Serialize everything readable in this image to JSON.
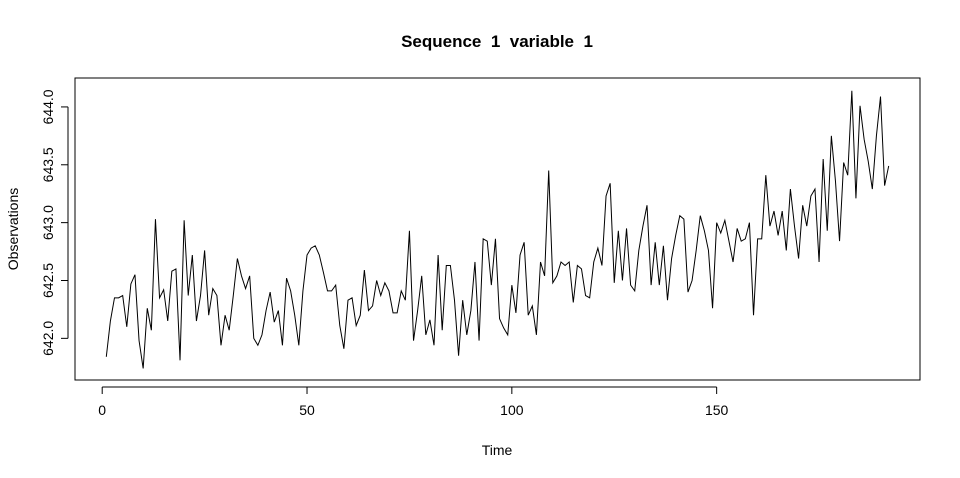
{
  "chart_data": {
    "type": "line",
    "title": "Sequence  1  variable  1",
    "x_label": "Time",
    "y_label": "Observations",
    "x": [
      1,
      2,
      3,
      4,
      5,
      6,
      7,
      8,
      9,
      10,
      11,
      12,
      13,
      14,
      15,
      16,
      17,
      18,
      19,
      20,
      21,
      22,
      23,
      24,
      25,
      26,
      27,
      28,
      29,
      30,
      31,
      32,
      33,
      34,
      35,
      36,
      37,
      38,
      39,
      40,
      41,
      42,
      43,
      44,
      45,
      46,
      47,
      48,
      49,
      50,
      51,
      52,
      53,
      54,
      55,
      56,
      57,
      58,
      59,
      60,
      61,
      62,
      63,
      64,
      65,
      66,
      67,
      68,
      69,
      70,
      71,
      72,
      73,
      74,
      75,
      76,
      77,
      78,
      79,
      80,
      81,
      82,
      83,
      84,
      85,
      86,
      87,
      88,
      89,
      90,
      91,
      92,
      93,
      94,
      95,
      96,
      97,
      98,
      99,
      100,
      101,
      102,
      103,
      104,
      105,
      106,
      107,
      108,
      109,
      110,
      111,
      112,
      113,
      114,
      115,
      116,
      117,
      118,
      119,
      120,
      121,
      122,
      123,
      124,
      125,
      126,
      127,
      128,
      129,
      130,
      131,
      132,
      133,
      134,
      135,
      136,
      137,
      138,
      139,
      140,
      141,
      142,
      143,
      144,
      145,
      146,
      147,
      148,
      149,
      150,
      151,
      152,
      153,
      154,
      155,
      156,
      157,
      158,
      159,
      160,
      161,
      162,
      163,
      164,
      165,
      166,
      167,
      168,
      169,
      170,
      171,
      172,
      173,
      174,
      175,
      176,
      177,
      178,
      179,
      180,
      181,
      182,
      183,
      184,
      185,
      186,
      187,
      188,
      189,
      190,
      191,
      192
    ],
    "series": [
      {
        "name": "Observations",
        "color": "#000000",
        "values": [
          641.84,
          642.15,
          642.35,
          642.35,
          642.37,
          642.1,
          642.47,
          642.55,
          641.98,
          641.74,
          642.26,
          642.07,
          643.03,
          642.35,
          642.42,
          642.15,
          642.58,
          642.6,
          641.81,
          643.02,
          642.37,
          642.72,
          642.15,
          642.37,
          642.76,
          642.2,
          642.43,
          642.37,
          641.94,
          642.2,
          642.07,
          642.37,
          642.69,
          642.54,
          642.43,
          642.54,
          642.0,
          641.94,
          642.03,
          642.24,
          642.4,
          642.14,
          642.24,
          641.94,
          642.52,
          642.41,
          642.2,
          641.94,
          642.41,
          642.72,
          642.78,
          642.8,
          642.72,
          642.57,
          642.41,
          642.41,
          642.46,
          642.11,
          641.91,
          642.33,
          642.35,
          642.11,
          642.2,
          642.59,
          642.24,
          642.28,
          642.5,
          642.37,
          642.48,
          642.41,
          642.22,
          642.22,
          642.41,
          642.33,
          642.93,
          641.98,
          642.24,
          642.54,
          642.03,
          642.16,
          641.94,
          642.72,
          642.07,
          642.63,
          642.63,
          642.33,
          641.85,
          642.33,
          642.03,
          642.24,
          642.66,
          641.98,
          642.86,
          642.84,
          642.46,
          642.86,
          642.17,
          642.09,
          642.03,
          642.46,
          642.22,
          642.72,
          642.83,
          642.2,
          642.28,
          642.03,
          642.66,
          642.54,
          643.45,
          642.48,
          642.54,
          642.66,
          642.63,
          642.66,
          642.31,
          642.63,
          642.6,
          642.37,
          642.35,
          642.66,
          642.78,
          642.63,
          643.23,
          643.34,
          642.48,
          642.93,
          642.5,
          642.95,
          642.46,
          642.41,
          642.76,
          642.97,
          643.15,
          642.46,
          642.83,
          642.46,
          642.8,
          642.33,
          642.69,
          642.89,
          643.06,
          643.03,
          642.4,
          642.5,
          642.76,
          643.06,
          642.93,
          642.76,
          642.26,
          643.0,
          642.91,
          643.02,
          642.84,
          642.66,
          642.95,
          642.84,
          642.86,
          643.0,
          642.2,
          642.86,
          642.86,
          643.41,
          642.97,
          643.1,
          642.89,
          643.1,
          642.76,
          643.29,
          642.97,
          642.69,
          643.15,
          642.97,
          643.23,
          643.29,
          642.66,
          643.55,
          642.93,
          643.75,
          643.36,
          642.84,
          643.52,
          643.41,
          644.14,
          643.21,
          644.01,
          643.72,
          643.53,
          643.29,
          643.75,
          644.09,
          643.32,
          643.49
        ]
      }
    ],
    "xlim": [
      -6.64,
      199.64
    ],
    "ylim": [
      641.64,
      644.25
    ],
    "xticks": [
      0,
      50,
      100,
      150
    ],
    "yticks": [
      {
        "value": 642,
        "label": "642.0"
      },
      642.5,
      {
        "value": 643,
        "label": "643.0"
      },
      643.5,
      {
        "value": 644,
        "label": "644.0"
      }
    ]
  }
}
